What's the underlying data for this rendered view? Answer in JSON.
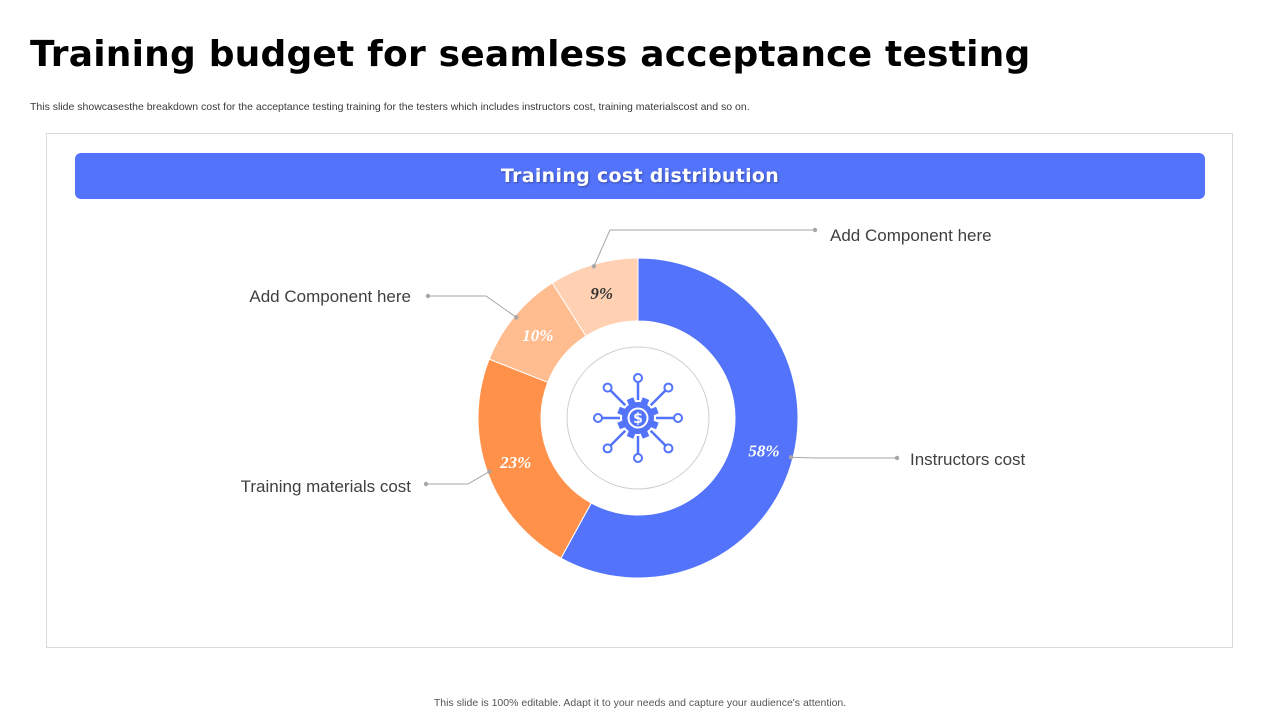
{
  "title": "Training budget for seamless acceptance testing",
  "subtitle": "This slide showcasesthe breakdown cost for the acceptance testing training for the testers which includes instructors cost, training materialscost and so on.",
  "footer": "This slide is 100% editable. Adapt it to your needs and capture your audience's attention.",
  "colors": {
    "accent": "#5373FA",
    "instructors": "#5373FA",
    "materials": "#FF914A",
    "component_1": "#FFBC8F",
    "component_2": "#FFD0B1",
    "leader_line": "#a6a6a6",
    "center_ring": "#cfcfcf"
  },
  "center_icon": "dollar-gear-network-icon",
  "chart_data": {
    "type": "pie",
    "title": "Training cost distribution",
    "donut": true,
    "slices": [
      {
        "label": "Instructors cost",
        "value": 58,
        "display": "58%",
        "color": "#5373FA",
        "label_color": "#ffffff"
      },
      {
        "label": "Training materials cost",
        "value": 23,
        "display": "23%",
        "color": "#FF914A",
        "label_color": "#ffffff"
      },
      {
        "label": "Add Component here",
        "value": 10,
        "display": "10%",
        "color": "#FFBC8F",
        "label_color": "#ffffff"
      },
      {
        "label": "Add Component here",
        "value": 9,
        "display": "9%",
        "color": "#FFD0B1",
        "label_color": "#333333"
      }
    ]
  }
}
